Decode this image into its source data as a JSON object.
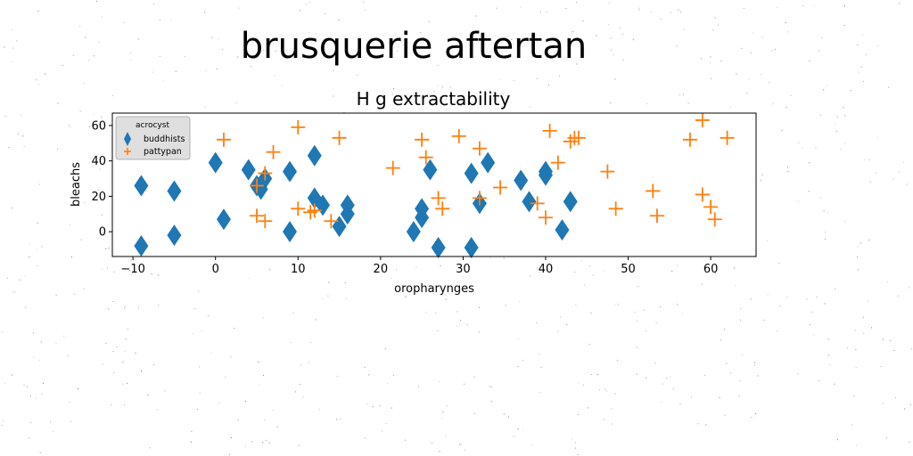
{
  "page": {
    "suptitle": "brusquerie aftertan"
  },
  "chart_data": {
    "type": "scatter",
    "title": "H g extractability",
    "xlabel": "oropharynges",
    "ylabel": "bleachs",
    "xlim": [
      -12.5,
      65.5
    ],
    "ylim": [
      -14,
      67
    ],
    "xticks": [
      -10,
      0,
      10,
      20,
      30,
      40,
      50,
      60
    ],
    "yticks": [
      0,
      20,
      40,
      60
    ],
    "grid": false,
    "legend": {
      "title": "acrocyst",
      "placement": "top-left"
    },
    "series": [
      {
        "name": "buddhists",
        "marker": "thin_diamond",
        "color": "#1f77b4",
        "points": [
          [
            -9,
            26
          ],
          [
            -9,
            -8
          ],
          [
            -5,
            23
          ],
          [
            -5,
            -2
          ],
          [
            0,
            39
          ],
          [
            1,
            7
          ],
          [
            4,
            35
          ],
          [
            5,
            26
          ],
          [
            5.5,
            24
          ],
          [
            6,
            30
          ],
          [
            9,
            34
          ],
          [
            9,
            0
          ],
          [
            12,
            43
          ],
          [
            12,
            19
          ],
          [
            13,
            15
          ],
          [
            15,
            3
          ],
          [
            16,
            10
          ],
          [
            16,
            15
          ],
          [
            25,
            13
          ],
          [
            25,
            8
          ],
          [
            24,
            0
          ],
          [
            26,
            35
          ],
          [
            27,
            -9
          ],
          [
            31,
            33
          ],
          [
            31,
            -9
          ],
          [
            32,
            16
          ],
          [
            33,
            39
          ],
          [
            37,
            29
          ],
          [
            38,
            17
          ],
          [
            40,
            32
          ],
          [
            40,
            34
          ],
          [
            42,
            1
          ],
          [
            43,
            17
          ]
        ]
      },
      {
        "name": "pattypan",
        "marker": "plus",
        "color": "#ff7f0e",
        "points": [
          [
            1,
            52
          ],
          [
            5,
            26
          ],
          [
            5,
            9
          ],
          [
            6,
            6
          ],
          [
            6,
            33
          ],
          [
            7,
            45
          ],
          [
            10,
            13
          ],
          [
            10,
            59
          ],
          [
            11.5,
            11
          ],
          [
            12,
            12
          ],
          [
            14,
            6
          ],
          [
            15,
            53
          ],
          [
            21.5,
            36
          ],
          [
            25,
            52
          ],
          [
            25.5,
            42
          ],
          [
            27,
            19
          ],
          [
            27.5,
            13
          ],
          [
            29.5,
            54
          ],
          [
            32,
            47
          ],
          [
            32,
            19
          ],
          [
            34.5,
            25
          ],
          [
            39,
            16
          ],
          [
            40,
            8
          ],
          [
            40.5,
            57
          ],
          [
            41.5,
            39
          ],
          [
            43,
            51
          ],
          [
            43.5,
            53
          ],
          [
            44,
            53
          ],
          [
            47.5,
            34
          ],
          [
            48.5,
            13
          ],
          [
            53,
            23
          ],
          [
            53.5,
            9
          ],
          [
            57.5,
            52
          ],
          [
            59,
            63
          ],
          [
            59,
            21
          ],
          [
            60,
            14
          ],
          [
            60.5,
            7
          ],
          [
            62,
            53
          ]
        ]
      }
    ]
  }
}
